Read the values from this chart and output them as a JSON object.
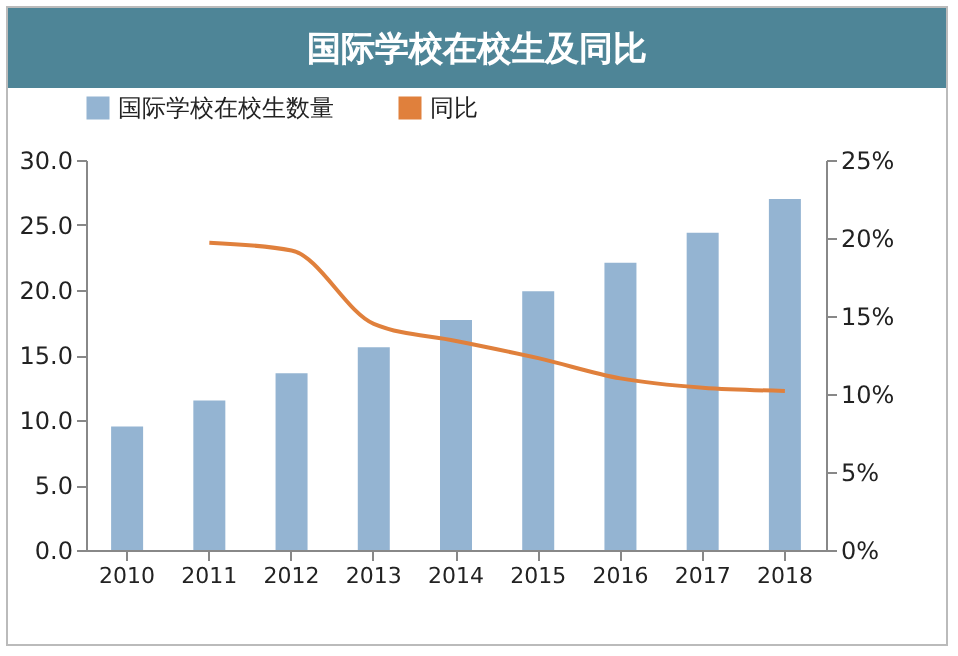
{
  "chart_data": {
    "type": "bar",
    "title": "国际学校在校生及同比",
    "categories": [
      "2010",
      "2011",
      "2012",
      "2013",
      "2014",
      "2015",
      "2016",
      "2017",
      "2018"
    ],
    "series": [
      {
        "name": "国际学校在校生数量",
        "color": "#94b4d2",
        "values": [
          9.5,
          11.5,
          13.6,
          15.6,
          17.7,
          19.9,
          22.1,
          24.4,
          27.0
        ]
      },
      {
        "name": "同比",
        "color": "#e0803c",
        "type": "line",
        "axis": "y2",
        "values": [
          null,
          19.7,
          19.2,
          14.5,
          13.4,
          12.3,
          11.0,
          10.4,
          10.2
        ]
      }
    ],
    "ylim": [
      0,
      30
    ],
    "yticks": [
      {
        "value": 0,
        "label": "0.0"
      },
      {
        "value": 5,
        "label": "5.0"
      },
      {
        "value": 10,
        "label": "10.0"
      },
      {
        "value": 15,
        "label": "15.0"
      },
      {
        "value": 20,
        "label": "20.0"
      },
      {
        "value": 25,
        "label": "25.0"
      },
      {
        "value": 30,
        "label": "30.0"
      }
    ],
    "y2lim": [
      0,
      25
    ],
    "y2ticks": [
      {
        "value": 0,
        "label": "0%"
      },
      {
        "value": 5,
        "label": "5%"
      },
      {
        "value": 10,
        "label": "10%"
      },
      {
        "value": 15,
        "label": "15%"
      },
      {
        "value": 20,
        "label": "20%"
      },
      {
        "value": 25,
        "label": "25%"
      }
    ],
    "legend": "top",
    "grid": false
  }
}
